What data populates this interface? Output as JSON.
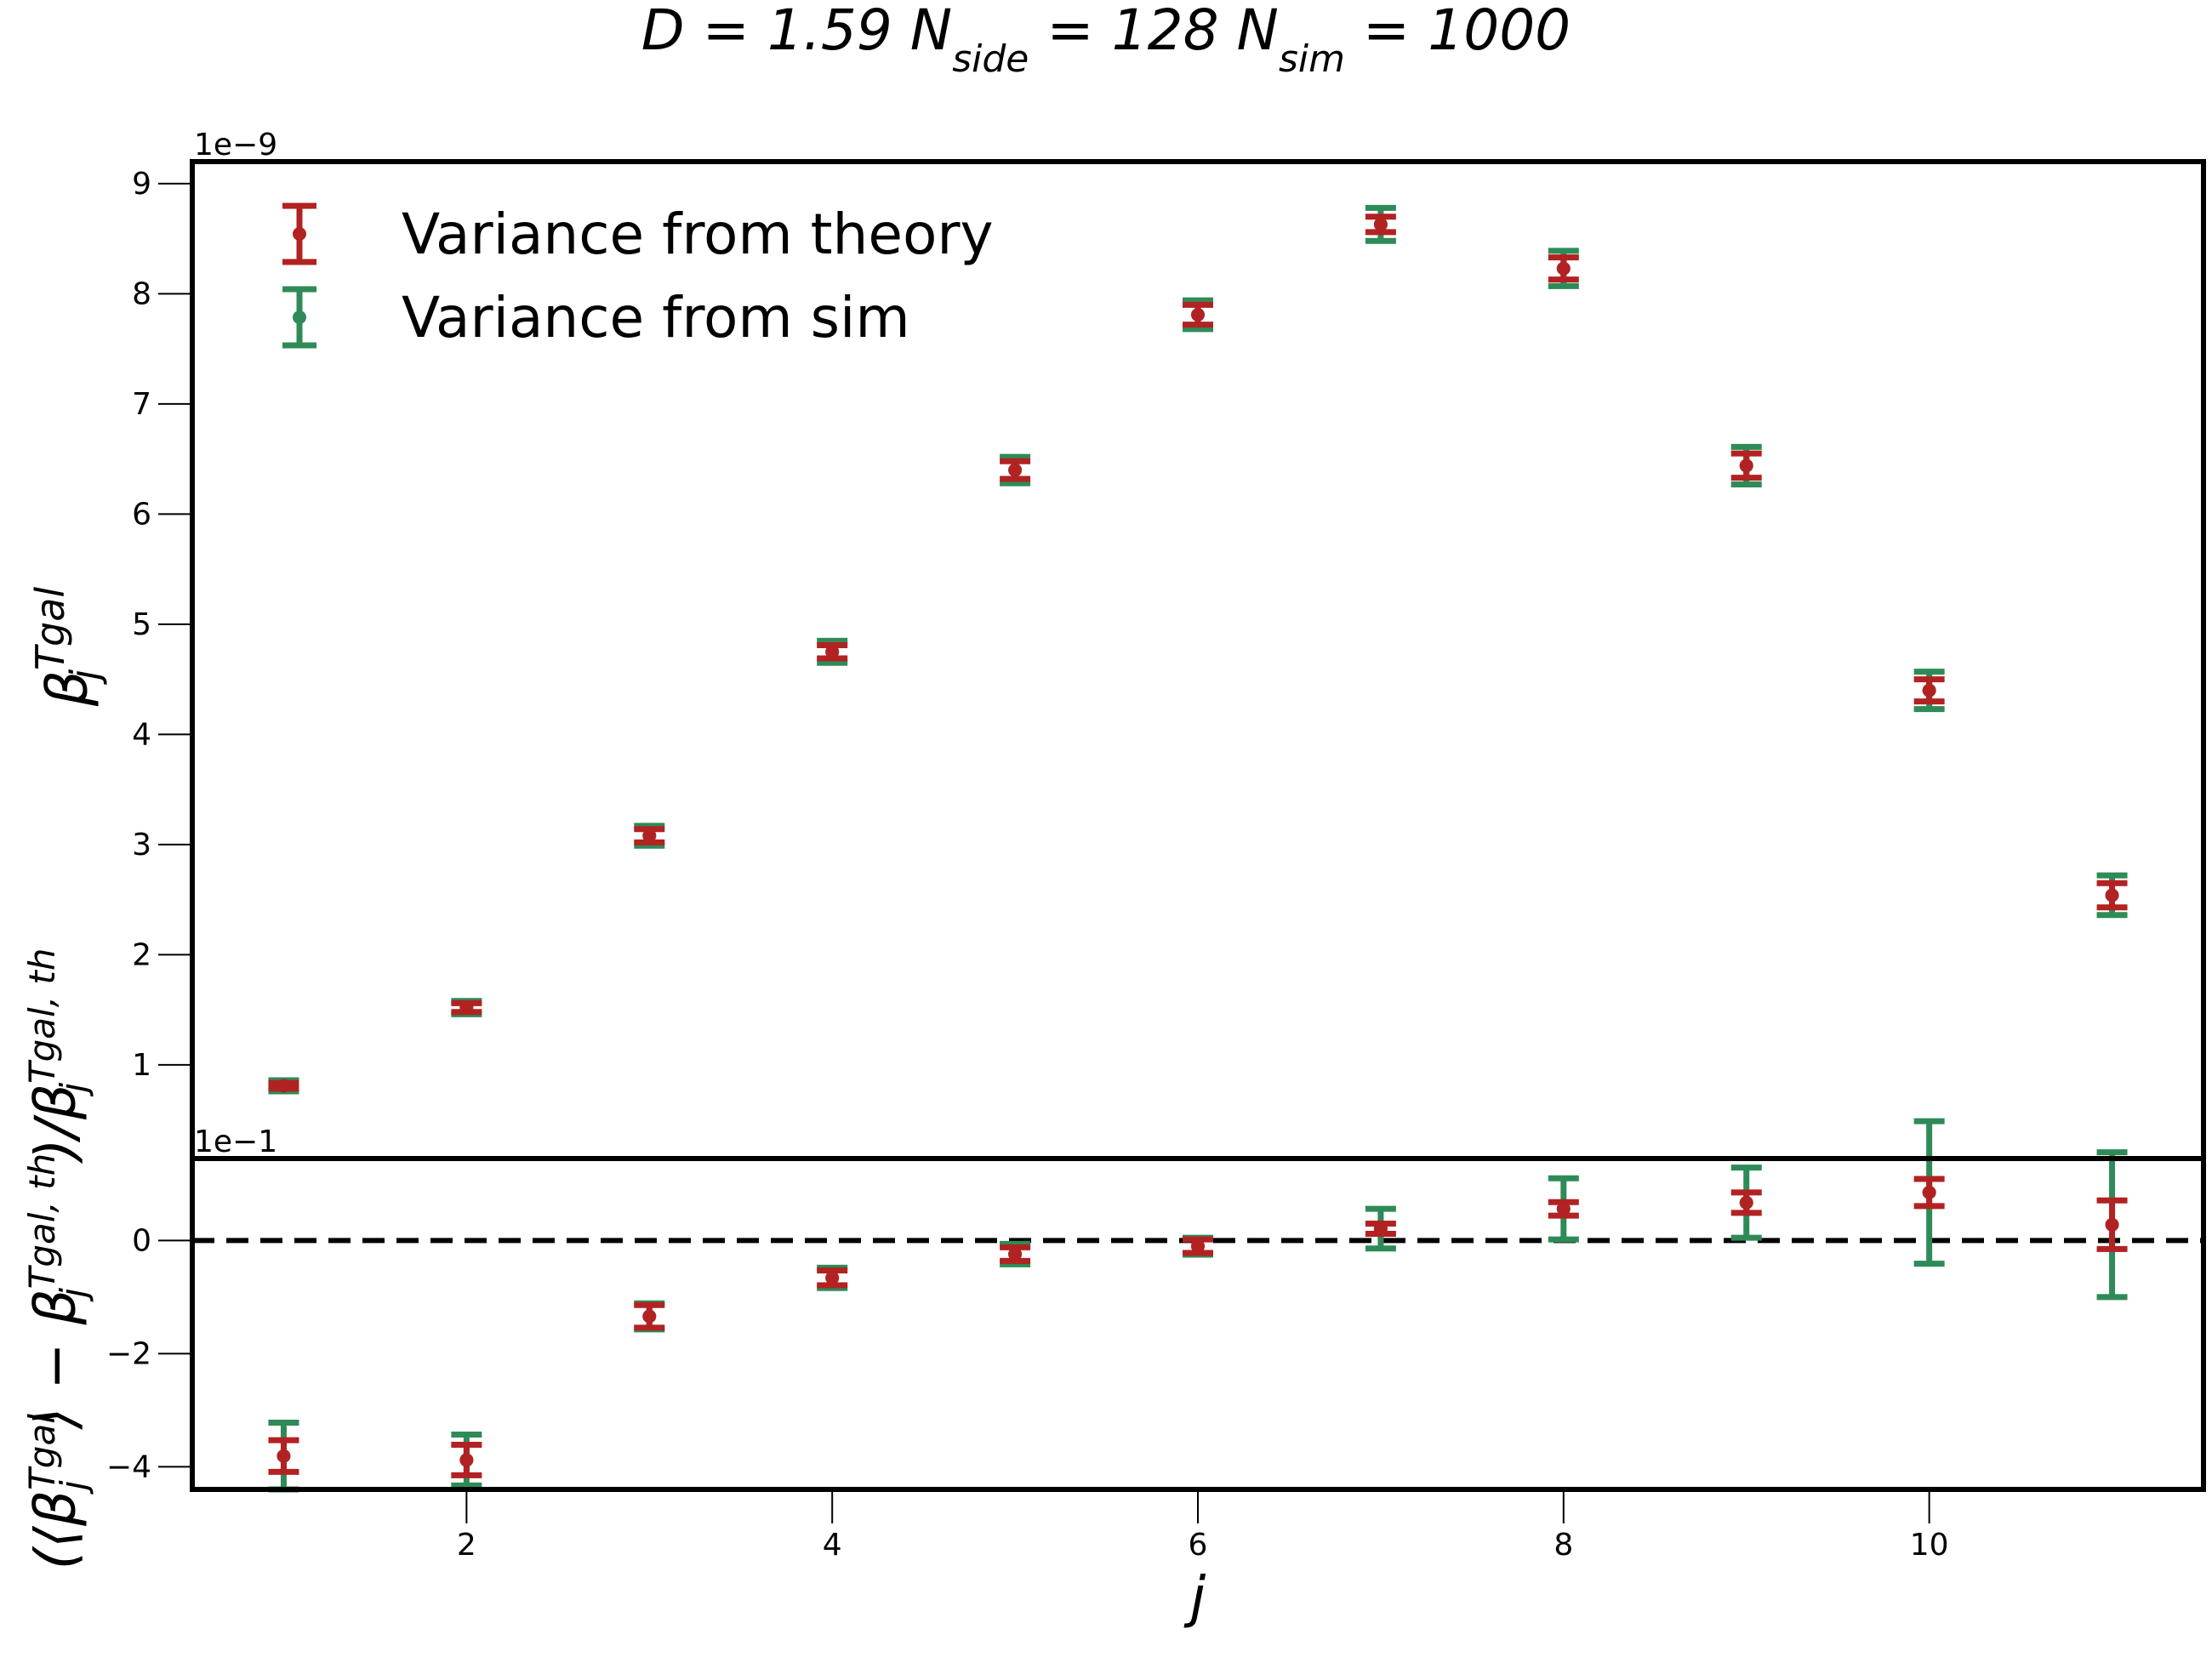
{
  "title": {
    "pre": "D = 1.59 N",
    "sub1": "side",
    "mid1": " = 128 N",
    "sub2": "sim",
    "post": " = 1000"
  },
  "legend": {
    "position": "upper-left",
    "theory_label": "Variance from theory",
    "sim_label": "Variance from sim"
  },
  "colors": {
    "theory": "#b22222",
    "sim": "#2e8b57",
    "zero_line": "#000000"
  },
  "chart_data": [
    {
      "id": "top",
      "type": "errorbar",
      "ylabel": {
        "sym": "β",
        "sup": "Tgal",
        "sub": "j"
      },
      "offset_text": "1e−9",
      "xlim": [
        0.5,
        11.5
      ],
      "ylim": [
        0.15,
        9.2
      ],
      "scale": 1e-09,
      "yticks": [
        1,
        2,
        3,
        4,
        5,
        6,
        7,
        8,
        9
      ],
      "ytick_labels": [
        "1",
        "2",
        "3",
        "4",
        "5",
        "6",
        "7",
        "8",
        "9"
      ],
      "x": [
        1,
        2,
        3,
        4,
        5,
        6,
        7,
        8,
        9,
        10,
        11
      ],
      "series": [
        {
          "name": "Variance from theory",
          "color": "#b22222",
          "y": [
            0.81,
            1.52,
            3.08,
            4.75,
            6.4,
            7.81,
            8.63,
            8.23,
            6.44,
            4.4,
            2.54
          ],
          "yerr": [
            0.025,
            0.04,
            0.06,
            0.06,
            0.08,
            0.09,
            0.07,
            0.1,
            0.11,
            0.1,
            0.11
          ]
        },
        {
          "name": "Variance from sim",
          "color": "#2e8b57",
          "y": [
            0.81,
            1.52,
            3.08,
            4.75,
            6.4,
            7.81,
            8.63,
            8.23,
            6.44,
            4.4,
            2.54
          ],
          "yerr": [
            0.05,
            0.06,
            0.09,
            0.1,
            0.12,
            0.13,
            0.15,
            0.16,
            0.17,
            0.17,
            0.18
          ]
        }
      ]
    },
    {
      "id": "bottom",
      "type": "errorbar",
      "ylabel": {
        "open": "(⟨β",
        "sup1": "Tgal",
        "sub1": "j",
        "mid": "⟩ − β",
        "sup2": "Tgal, th",
        "sub2": "j",
        "div": ")/β",
        "sup3": "Tgal, th",
        "sub3": "j"
      },
      "xlabel": "j",
      "offset_text": "1e−1",
      "xlim": [
        0.5,
        11.5
      ],
      "ylim": [
        -4.4,
        1.45
      ],
      "scale": 0.1,
      "yticks": [
        -4,
        -2,
        0
      ],
      "ytick_labels": [
        "−4",
        "−2",
        "0"
      ],
      "xticks": [
        2,
        4,
        6,
        8,
        10
      ],
      "xtick_labels": [
        "2",
        "4",
        "6",
        "8",
        "10"
      ],
      "reference_line": {
        "y": 0,
        "style": "dashed"
      },
      "x": [
        1,
        2,
        3,
        4,
        5,
        6,
        7,
        8,
        9,
        10,
        11
      ],
      "series": [
        {
          "name": "Variance from theory",
          "color": "#b22222",
          "y": [
            -3.81,
            -3.88,
            -1.34,
            -0.66,
            -0.24,
            -0.1,
            0.21,
            0.56,
            0.67,
            0.85,
            0.28
          ],
          "yerr": [
            0.28,
            0.27,
            0.2,
            0.13,
            0.12,
            0.12,
            0.09,
            0.12,
            0.18,
            0.24,
            0.43
          ]
        },
        {
          "name": "Variance from sim",
          "color": "#2e8b57",
          "y": [
            -3.81,
            -3.88,
            -1.34,
            -0.66,
            -0.24,
            -0.1,
            0.21,
            0.56,
            0.67,
            0.85,
            0.28
          ],
          "yerr": [
            0.59,
            0.45,
            0.23,
            0.18,
            0.18,
            0.15,
            0.35,
            0.54,
            0.62,
            1.26,
            1.28
          ]
        }
      ]
    }
  ]
}
